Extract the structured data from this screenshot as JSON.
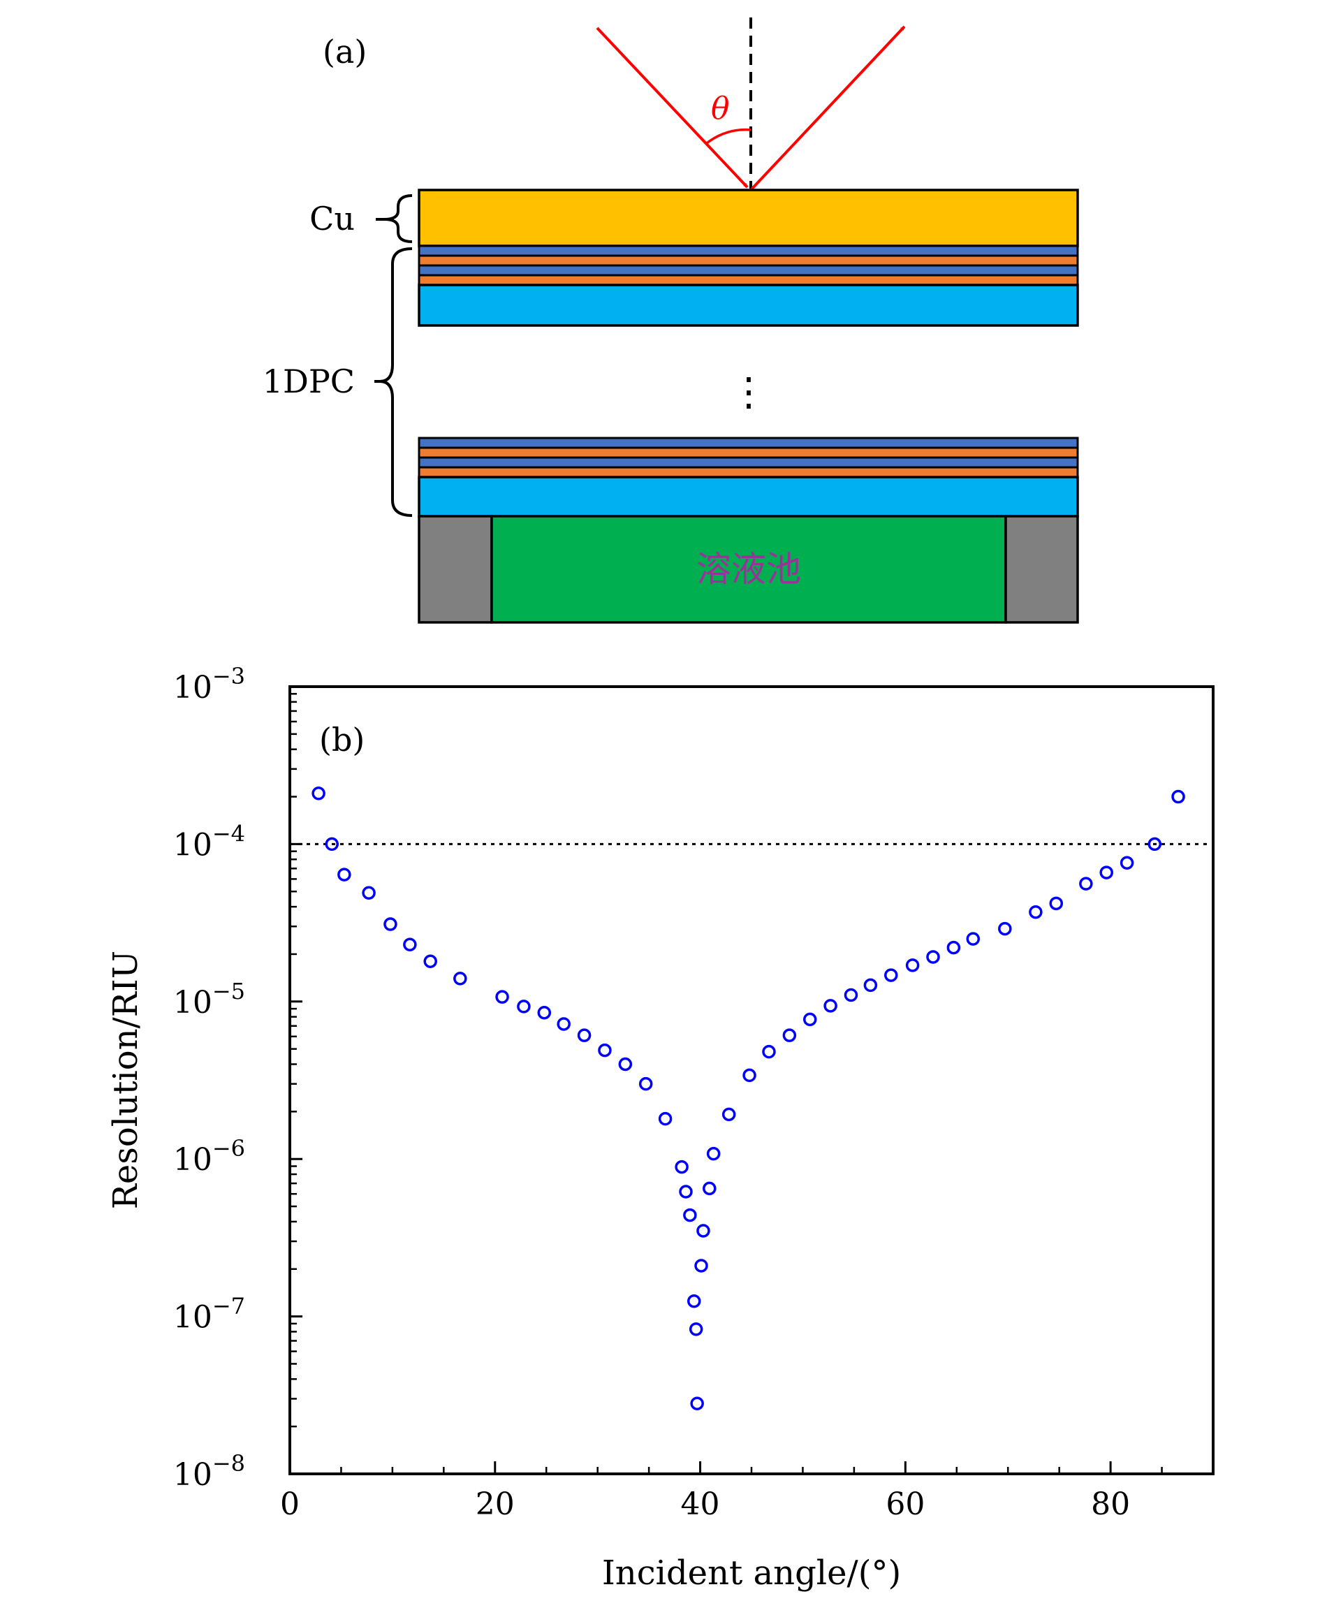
{
  "panel_a": {
    "label": "(a)",
    "theta": "θ",
    "cu_label": "Cu",
    "dpc_label": "1DPC",
    "ellipsis": "⋮",
    "cell_label": "溶液池",
    "colors": {
      "cu": "#FFC000",
      "blue_thin": "#4472C4",
      "orange_thin": "#ED7D31",
      "cyan": "#00B0F0",
      "green": "#00B050",
      "gray": "#808080",
      "ray": "#FF0000",
      "cell_text": "#993399"
    }
  },
  "panel_b": {
    "label": "(b)"
  },
  "chart_data": {
    "type": "scatter",
    "xlabel": "Incident angle/(°)",
    "ylabel": "Resolution/RIU",
    "xlim": [
      0,
      90
    ],
    "ylim": [
      1e-08,
      0.001
    ],
    "yscale": "log",
    "xticks": [
      0,
      20,
      40,
      60,
      80
    ],
    "xtick_labels": [
      "0",
      "20",
      "40",
      "60",
      "80"
    ],
    "yticks": [
      1e-08,
      1e-07,
      1e-06,
      1e-05,
      0.0001,
      0.001
    ],
    "ytick_labels": [
      {
        "base": "10",
        "exp": "−8"
      },
      {
        "base": "10",
        "exp": "−7"
      },
      {
        "base": "10",
        "exp": "−6"
      },
      {
        "base": "10",
        "exp": "−5"
      },
      {
        "base": "10",
        "exp": "−4"
      },
      {
        "base": "10",
        "exp": "−3"
      }
    ],
    "reference_line": {
      "y": 0.0001,
      "style": "dotted"
    },
    "marker_color": "#0000FF",
    "x": [
      2.8,
      4.1,
      5.3,
      7.7,
      9.8,
      11.7,
      13.7,
      16.6,
      20.7,
      22.8,
      24.8,
      26.7,
      28.7,
      30.7,
      32.7,
      34.7,
      36.6,
      38.2,
      38.6,
      39.0,
      39.4,
      39.6,
      39.7,
      40.1,
      40.3,
      40.9,
      41.3,
      42.8,
      44.8,
      46.7,
      48.7,
      50.7,
      52.7,
      54.7,
      56.6,
      58.6,
      60.7,
      62.7,
      64.7,
      66.6,
      69.7,
      72.7,
      74.7,
      77.6,
      79.6,
      81.6,
      84.3,
      86.6
    ],
    "y": [
      0.00021,
      0.0001,
      6.4e-05,
      4.9e-05,
      3.1e-05,
      2.3e-05,
      1.8e-05,
      1.4e-05,
      1.07e-05,
      9.3e-06,
      8.5e-06,
      7.2e-06,
      6.1e-06,
      4.9e-06,
      4e-06,
      3e-06,
      1.8e-06,
      8.9e-07,
      6.2e-07,
      4.4e-07,
      1.25e-07,
      8.3e-08,
      2.8e-08,
      2.1e-07,
      3.5e-07,
      6.5e-07,
      1.08e-06,
      1.92e-06,
      3.4e-06,
      4.8e-06,
      6.1e-06,
      7.7e-06,
      9.4e-06,
      1.1e-05,
      1.27e-05,
      1.47e-05,
      1.7e-05,
      1.92e-05,
      2.2e-05,
      2.5e-05,
      2.9e-05,
      3.7e-05,
      4.2e-05,
      5.6e-05,
      6.6e-05,
      7.6e-05,
      0.0001,
      0.0002
    ]
  }
}
